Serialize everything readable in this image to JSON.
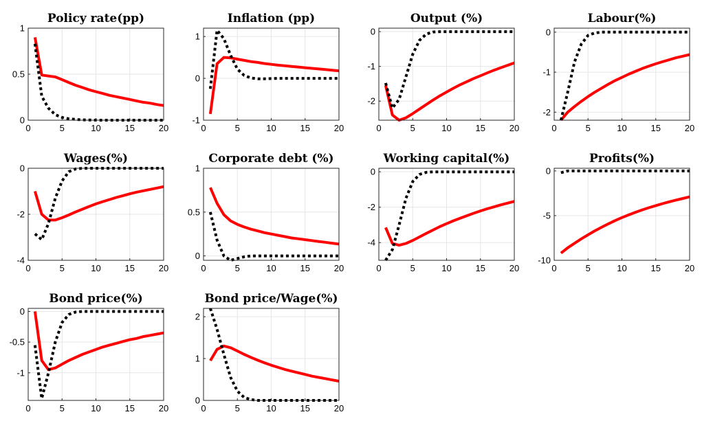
{
  "chart_data": [
    {
      "type": "line",
      "title": "Policy rate(pp)",
      "x": [
        1,
        2,
        3,
        4,
        5,
        6,
        7,
        8,
        9,
        10,
        11,
        12,
        13,
        14,
        15,
        16,
        17,
        18,
        19,
        20
      ],
      "xlim": [
        0,
        20
      ],
      "ylim": [
        0,
        1
      ],
      "xticks": [
        0,
        5,
        10,
        15,
        20
      ],
      "yticks": [
        0,
        0.5,
        1
      ],
      "ytick_labels": [
        "0",
        "0.5",
        "1"
      ],
      "grid": true,
      "series": [
        {
          "style": "solid",
          "color": "#ff0000",
          "values": [
            0.9,
            0.49,
            0.48,
            0.47,
            0.44,
            0.41,
            0.38,
            0.355,
            0.33,
            0.31,
            0.29,
            0.27,
            0.255,
            0.24,
            0.225,
            0.21,
            0.195,
            0.185,
            0.17,
            0.16
          ]
        },
        {
          "style": "dotted",
          "color": "#000000",
          "values": [
            0.83,
            0.26,
            0.13,
            0.06,
            0.03,
            0.015,
            0.008,
            0.004,
            0.002,
            0.001,
            0,
            0,
            0,
            0,
            0,
            0,
            0,
            0,
            0,
            0
          ]
        }
      ]
    },
    {
      "type": "line",
      "title": "Inflation (pp)",
      "x": [
        1,
        2,
        3,
        4,
        5,
        6,
        7,
        8,
        9,
        10,
        11,
        12,
        13,
        14,
        15,
        16,
        17,
        18,
        19,
        20
      ],
      "xlim": [
        0,
        20
      ],
      "ylim": [
        -1,
        1.2
      ],
      "xticks": [
        0,
        5,
        10,
        15,
        20
      ],
      "yticks": [
        -1,
        0,
        1
      ],
      "ytick_labels": [
        "-1",
        "0",
        "1"
      ],
      "grid": true,
      "series": [
        {
          "style": "solid",
          "color": "#ff0000",
          "values": [
            -0.85,
            0.35,
            0.5,
            0.49,
            0.46,
            0.43,
            0.4,
            0.38,
            0.355,
            0.335,
            0.315,
            0.3,
            0.285,
            0.27,
            0.255,
            0.24,
            0.225,
            0.21,
            0.195,
            0.18
          ]
        },
        {
          "style": "dotted",
          "color": "#000000",
          "values": [
            -0.25,
            1.15,
            0.95,
            0.55,
            0.22,
            0.07,
            0.01,
            -0.01,
            -0.01,
            -0.005,
            0,
            0,
            0,
            0,
            0,
            0,
            0,
            0,
            0,
            0
          ]
        }
      ]
    },
    {
      "type": "line",
      "title": "Output (%)",
      "x": [
        1,
        2,
        3,
        4,
        5,
        6,
        7,
        8,
        9,
        10,
        11,
        12,
        13,
        14,
        15,
        16,
        17,
        18,
        19,
        20
      ],
      "xlim": [
        0,
        20
      ],
      "ylim": [
        -2.55,
        0.1
      ],
      "xticks": [
        0,
        5,
        10,
        15,
        20
      ],
      "yticks": [
        -2,
        -1,
        0
      ],
      "ytick_labels": [
        "-2",
        "-1",
        "0"
      ],
      "grid": true,
      "series": [
        {
          "style": "solid",
          "color": "#ff0000",
          "values": [
            -1.55,
            -2.4,
            -2.55,
            -2.48,
            -2.36,
            -2.23,
            -2.1,
            -1.97,
            -1.85,
            -1.74,
            -1.63,
            -1.53,
            -1.44,
            -1.35,
            -1.27,
            -1.19,
            -1.11,
            -1.04,
            -0.97,
            -0.9
          ]
        },
        {
          "style": "dotted",
          "color": "#000000",
          "values": [
            -1.48,
            -2.2,
            -1.95,
            -1.3,
            -0.65,
            -0.25,
            -0.07,
            -0.01,
            0,
            0,
            0,
            0,
            0,
            0,
            0,
            0,
            0,
            0,
            0,
            0
          ]
        }
      ]
    },
    {
      "type": "line",
      "title": "Labour(%)",
      "x": [
        1,
        2,
        3,
        4,
        5,
        6,
        7,
        8,
        9,
        10,
        11,
        12,
        13,
        14,
        15,
        16,
        17,
        18,
        19,
        20
      ],
      "xlim": [
        0,
        20
      ],
      "ylim": [
        -2.2,
        0.1
      ],
      "xticks": [
        0,
        5,
        10,
        15,
        20
      ],
      "yticks": [
        -2,
        -1,
        0
      ],
      "ytick_labels": [
        "-2",
        "-1",
        "0"
      ],
      "grid": true,
      "series": [
        {
          "style": "solid",
          "color": "#ff0000",
          "values": [
            -2.2,
            -2.0,
            -1.86,
            -1.73,
            -1.61,
            -1.5,
            -1.4,
            -1.3,
            -1.21,
            -1.13,
            -1.05,
            -0.98,
            -0.91,
            -0.85,
            -0.79,
            -0.74,
            -0.69,
            -0.64,
            -0.6,
            -0.56
          ]
        },
        {
          "style": "dotted",
          "color": "#000000",
          "values": [
            -2.2,
            -1.5,
            -0.75,
            -0.3,
            -0.08,
            -0.02,
            0,
            0,
            0,
            0,
            0,
            0,
            0,
            0,
            0,
            0,
            0,
            0,
            0,
            0
          ]
        }
      ]
    },
    {
      "type": "line",
      "title": "Wages(%)",
      "x": [
        1,
        2,
        3,
        4,
        5,
        6,
        7,
        8,
        9,
        10,
        11,
        12,
        13,
        14,
        15,
        16,
        17,
        18,
        19,
        20
      ],
      "xlim": [
        0,
        20
      ],
      "ylim": [
        -4,
        0
      ],
      "xticks": [
        0,
        5,
        10,
        15,
        20
      ],
      "yticks": [
        -4,
        -2,
        0
      ],
      "ytick_labels": [
        "-4",
        "-2",
        "0"
      ],
      "grid": true,
      "series": [
        {
          "style": "solid",
          "color": "#ff0000",
          "values": [
            -1.0,
            -2.0,
            -2.25,
            -2.25,
            -2.15,
            -2.03,
            -1.9,
            -1.78,
            -1.66,
            -1.55,
            -1.45,
            -1.36,
            -1.27,
            -1.19,
            -1.11,
            -1.04,
            -0.98,
            -0.92,
            -0.86,
            -0.8
          ]
        },
        {
          "style": "dotted",
          "color": "#000000",
          "values": [
            -2.85,
            -3.1,
            -2.4,
            -1.3,
            -0.55,
            -0.15,
            -0.03,
            0,
            0,
            0,
            0,
            0,
            0,
            0,
            0,
            0,
            0,
            0,
            0,
            0
          ]
        }
      ]
    },
    {
      "type": "line",
      "title": "Corporate debt (%)",
      "x": [
        1,
        2,
        3,
        4,
        5,
        6,
        7,
        8,
        9,
        10,
        11,
        12,
        13,
        14,
        15,
        16,
        17,
        18,
        19,
        20
      ],
      "xlim": [
        0,
        20
      ],
      "ylim": [
        -0.05,
        1
      ],
      "xticks": [
        0,
        5,
        10,
        15,
        20
      ],
      "yticks": [
        0,
        0.5,
        1
      ],
      "ytick_labels": [
        "0",
        "0.5",
        "1"
      ],
      "grid": true,
      "series": [
        {
          "style": "solid",
          "color": "#ff0000",
          "values": [
            0.78,
            0.6,
            0.47,
            0.4,
            0.36,
            0.33,
            0.305,
            0.285,
            0.265,
            0.25,
            0.235,
            0.22,
            0.205,
            0.195,
            0.185,
            0.175,
            0.165,
            0.155,
            0.145,
            0.135
          ]
        },
        {
          "style": "dotted",
          "color": "#000000",
          "values": [
            0.5,
            0.18,
            0.0,
            -0.05,
            -0.03,
            -0.01,
            0,
            0,
            0,
            0,
            0,
            0,
            0,
            0,
            0,
            0,
            0,
            0,
            0,
            0
          ]
        }
      ]
    },
    {
      "type": "line",
      "title": "Working capital(%)",
      "x": [
        1,
        2,
        3,
        4,
        5,
        6,
        7,
        8,
        9,
        10,
        11,
        12,
        13,
        14,
        15,
        16,
        17,
        18,
        19,
        20
      ],
      "xlim": [
        0,
        20
      ],
      "ylim": [
        -5,
        0.2
      ],
      "xticks": [
        0,
        5,
        10,
        15,
        20
      ],
      "yticks": [
        -4,
        -2,
        0
      ],
      "ytick_labels": [
        "-4",
        "-2",
        "0"
      ],
      "grid": true,
      "series": [
        {
          "style": "solid",
          "color": "#ff0000",
          "values": [
            -3.15,
            -4.05,
            -4.15,
            -4.05,
            -3.88,
            -3.68,
            -3.48,
            -3.29,
            -3.1,
            -2.93,
            -2.77,
            -2.62,
            -2.48,
            -2.34,
            -2.21,
            -2.09,
            -1.98,
            -1.87,
            -1.77,
            -1.67
          ]
        },
        {
          "style": "dotted",
          "color": "#000000",
          "values": [
            -5.0,
            -4.4,
            -3.0,
            -1.5,
            -0.55,
            -0.15,
            -0.03,
            0,
            0,
            0,
            0,
            0,
            0,
            0,
            0,
            0,
            0,
            0,
            0,
            0
          ]
        }
      ]
    },
    {
      "type": "line",
      "title": "Profits(%)",
      "x": [
        1,
        2,
        3,
        4,
        5,
        6,
        7,
        8,
        9,
        10,
        11,
        12,
        13,
        14,
        15,
        16,
        17,
        18,
        19,
        20
      ],
      "xlim": [
        0,
        20
      ],
      "ylim": [
        -10,
        0.3
      ],
      "xticks": [
        0,
        5,
        10,
        15,
        20
      ],
      "yticks": [
        -10,
        -5,
        0
      ],
      "ytick_labels": [
        "-10",
        "-5",
        "0"
      ],
      "grid": true,
      "series": [
        {
          "style": "solid",
          "color": "#ff0000",
          "values": [
            -9.2,
            -8.6,
            -8.1,
            -7.6,
            -7.15,
            -6.7,
            -6.3,
            -5.92,
            -5.56,
            -5.22,
            -4.92,
            -4.63,
            -4.36,
            -4.11,
            -3.88,
            -3.66,
            -3.45,
            -3.26,
            -3.08,
            -2.9
          ]
        },
        {
          "style": "dotted",
          "color": "#000000",
          "values": [
            -0.2,
            0.0,
            0.0,
            0,
            0,
            0,
            0,
            0,
            0,
            0,
            0,
            0,
            0,
            0,
            0,
            0,
            0,
            0,
            0,
            0
          ]
        }
      ]
    },
    {
      "type": "line",
      "title": "Bond price(%)",
      "x": [
        1,
        2,
        3,
        4,
        5,
        6,
        7,
        8,
        9,
        10,
        11,
        12,
        13,
        14,
        15,
        16,
        17,
        18,
        19,
        20
      ],
      "xlim": [
        0,
        20
      ],
      "ylim": [
        -1.45,
        0.05
      ],
      "xticks": [
        0,
        5,
        10,
        15,
        20
      ],
      "yticks": [
        -1,
        -0.5,
        0
      ],
      "ytick_labels": [
        "-1",
        "-0.5",
        "0"
      ],
      "grid": true,
      "series": [
        {
          "style": "solid",
          "color": "#ff0000",
          "values": [
            0.0,
            -0.8,
            -0.95,
            -0.92,
            -0.86,
            -0.8,
            -0.75,
            -0.7,
            -0.66,
            -0.62,
            -0.58,
            -0.55,
            -0.52,
            -0.49,
            -0.46,
            -0.44,
            -0.41,
            -0.39,
            -0.37,
            -0.35
          ]
        },
        {
          "style": "dotted",
          "color": "#000000",
          "values": [
            -0.55,
            -1.42,
            -1.0,
            -0.5,
            -0.18,
            -0.05,
            -0.01,
            0,
            0,
            0,
            0,
            0,
            0,
            0,
            0,
            0,
            0,
            0,
            0,
            0
          ]
        }
      ]
    },
    {
      "type": "line",
      "title": "Bond price/Wage(%)",
      "x": [
        1,
        2,
        3,
        4,
        5,
        6,
        7,
        8,
        9,
        10,
        11,
        12,
        13,
        14,
        15,
        16,
        17,
        18,
        19,
        20
      ],
      "xlim": [
        0,
        20
      ],
      "ylim": [
        0,
        2.2
      ],
      "xticks": [
        0,
        5,
        10,
        15,
        20
      ],
      "yticks": [
        0,
        1,
        2
      ],
      "ytick_labels": [
        "0",
        "1",
        "2"
      ],
      "grid": true,
      "series": [
        {
          "style": "solid",
          "color": "#ff0000",
          "values": [
            0.95,
            1.22,
            1.3,
            1.26,
            1.18,
            1.1,
            1.03,
            0.96,
            0.9,
            0.84,
            0.79,
            0.74,
            0.7,
            0.66,
            0.62,
            0.58,
            0.55,
            0.52,
            0.49,
            0.46
          ]
        },
        {
          "style": "dotted",
          "color": "#000000",
          "values": [
            2.2,
            1.7,
            1.1,
            0.55,
            0.22,
            0.07,
            0.02,
            0,
            0,
            0,
            0,
            0,
            0,
            0,
            0,
            0,
            0,
            0,
            0,
            0
          ]
        }
      ]
    }
  ]
}
